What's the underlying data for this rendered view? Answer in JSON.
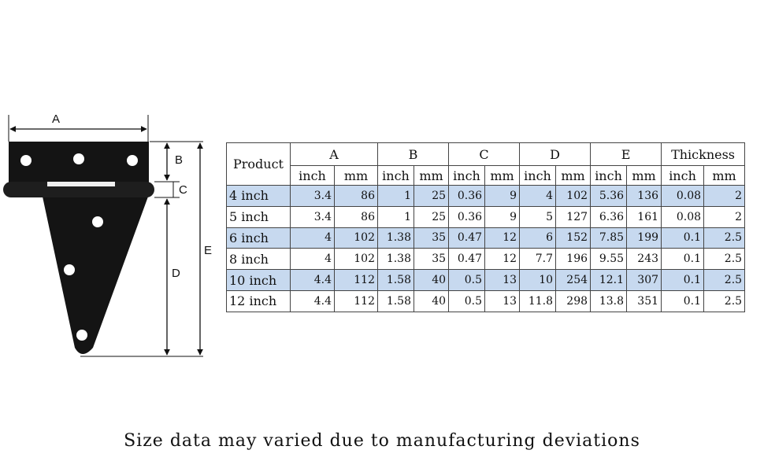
{
  "figure": {
    "labels": {
      "a": "A",
      "b": "B",
      "c": "C",
      "d": "D",
      "e": "E"
    }
  },
  "table": {
    "product_header": "Product",
    "groups": [
      "A",
      "B",
      "C",
      "D",
      "E",
      "Thickness"
    ],
    "units": [
      "inch",
      "mm"
    ],
    "rows": [
      {
        "product": "4 inch",
        "values": [
          "3.4",
          "86",
          "1",
          "25",
          "0.36",
          "9",
          "4",
          "102",
          "5.36",
          "136",
          "0.08",
          "2"
        ],
        "shaded": true
      },
      {
        "product": "5 inch",
        "values": [
          "3.4",
          "86",
          "1",
          "25",
          "0.36",
          "9",
          "5",
          "127",
          "6.36",
          "161",
          "0.08",
          "2"
        ],
        "shaded": false
      },
      {
        "product": "6 inch",
        "values": [
          "4",
          "102",
          "1.38",
          "35",
          "0.47",
          "12",
          "6",
          "152",
          "7.85",
          "199",
          "0.1",
          "2.5"
        ],
        "shaded": true
      },
      {
        "product": "8 inch",
        "values": [
          "4",
          "102",
          "1.38",
          "35",
          "0.47",
          "12",
          "7.7",
          "196",
          "9.55",
          "243",
          "0.1",
          "2.5"
        ],
        "shaded": false
      },
      {
        "product": "10 inch",
        "values": [
          "4.4",
          "112",
          "1.58",
          "40",
          "0.5",
          "13",
          "10",
          "254",
          "12.1",
          "307",
          "0.1",
          "2.5"
        ],
        "shaded": true
      },
      {
        "product": "12 inch",
        "values": [
          "4.4",
          "112",
          "1.58",
          "40",
          "0.5",
          "13",
          "11.8",
          "298",
          "13.8",
          "351",
          "0.1",
          "2.5"
        ],
        "shaded": false
      }
    ]
  },
  "footnote": "Size data may varied due to manufacturing deviations",
  "colors": {
    "row_shade": "#c7d9ef",
    "hinge": "#141414"
  }
}
